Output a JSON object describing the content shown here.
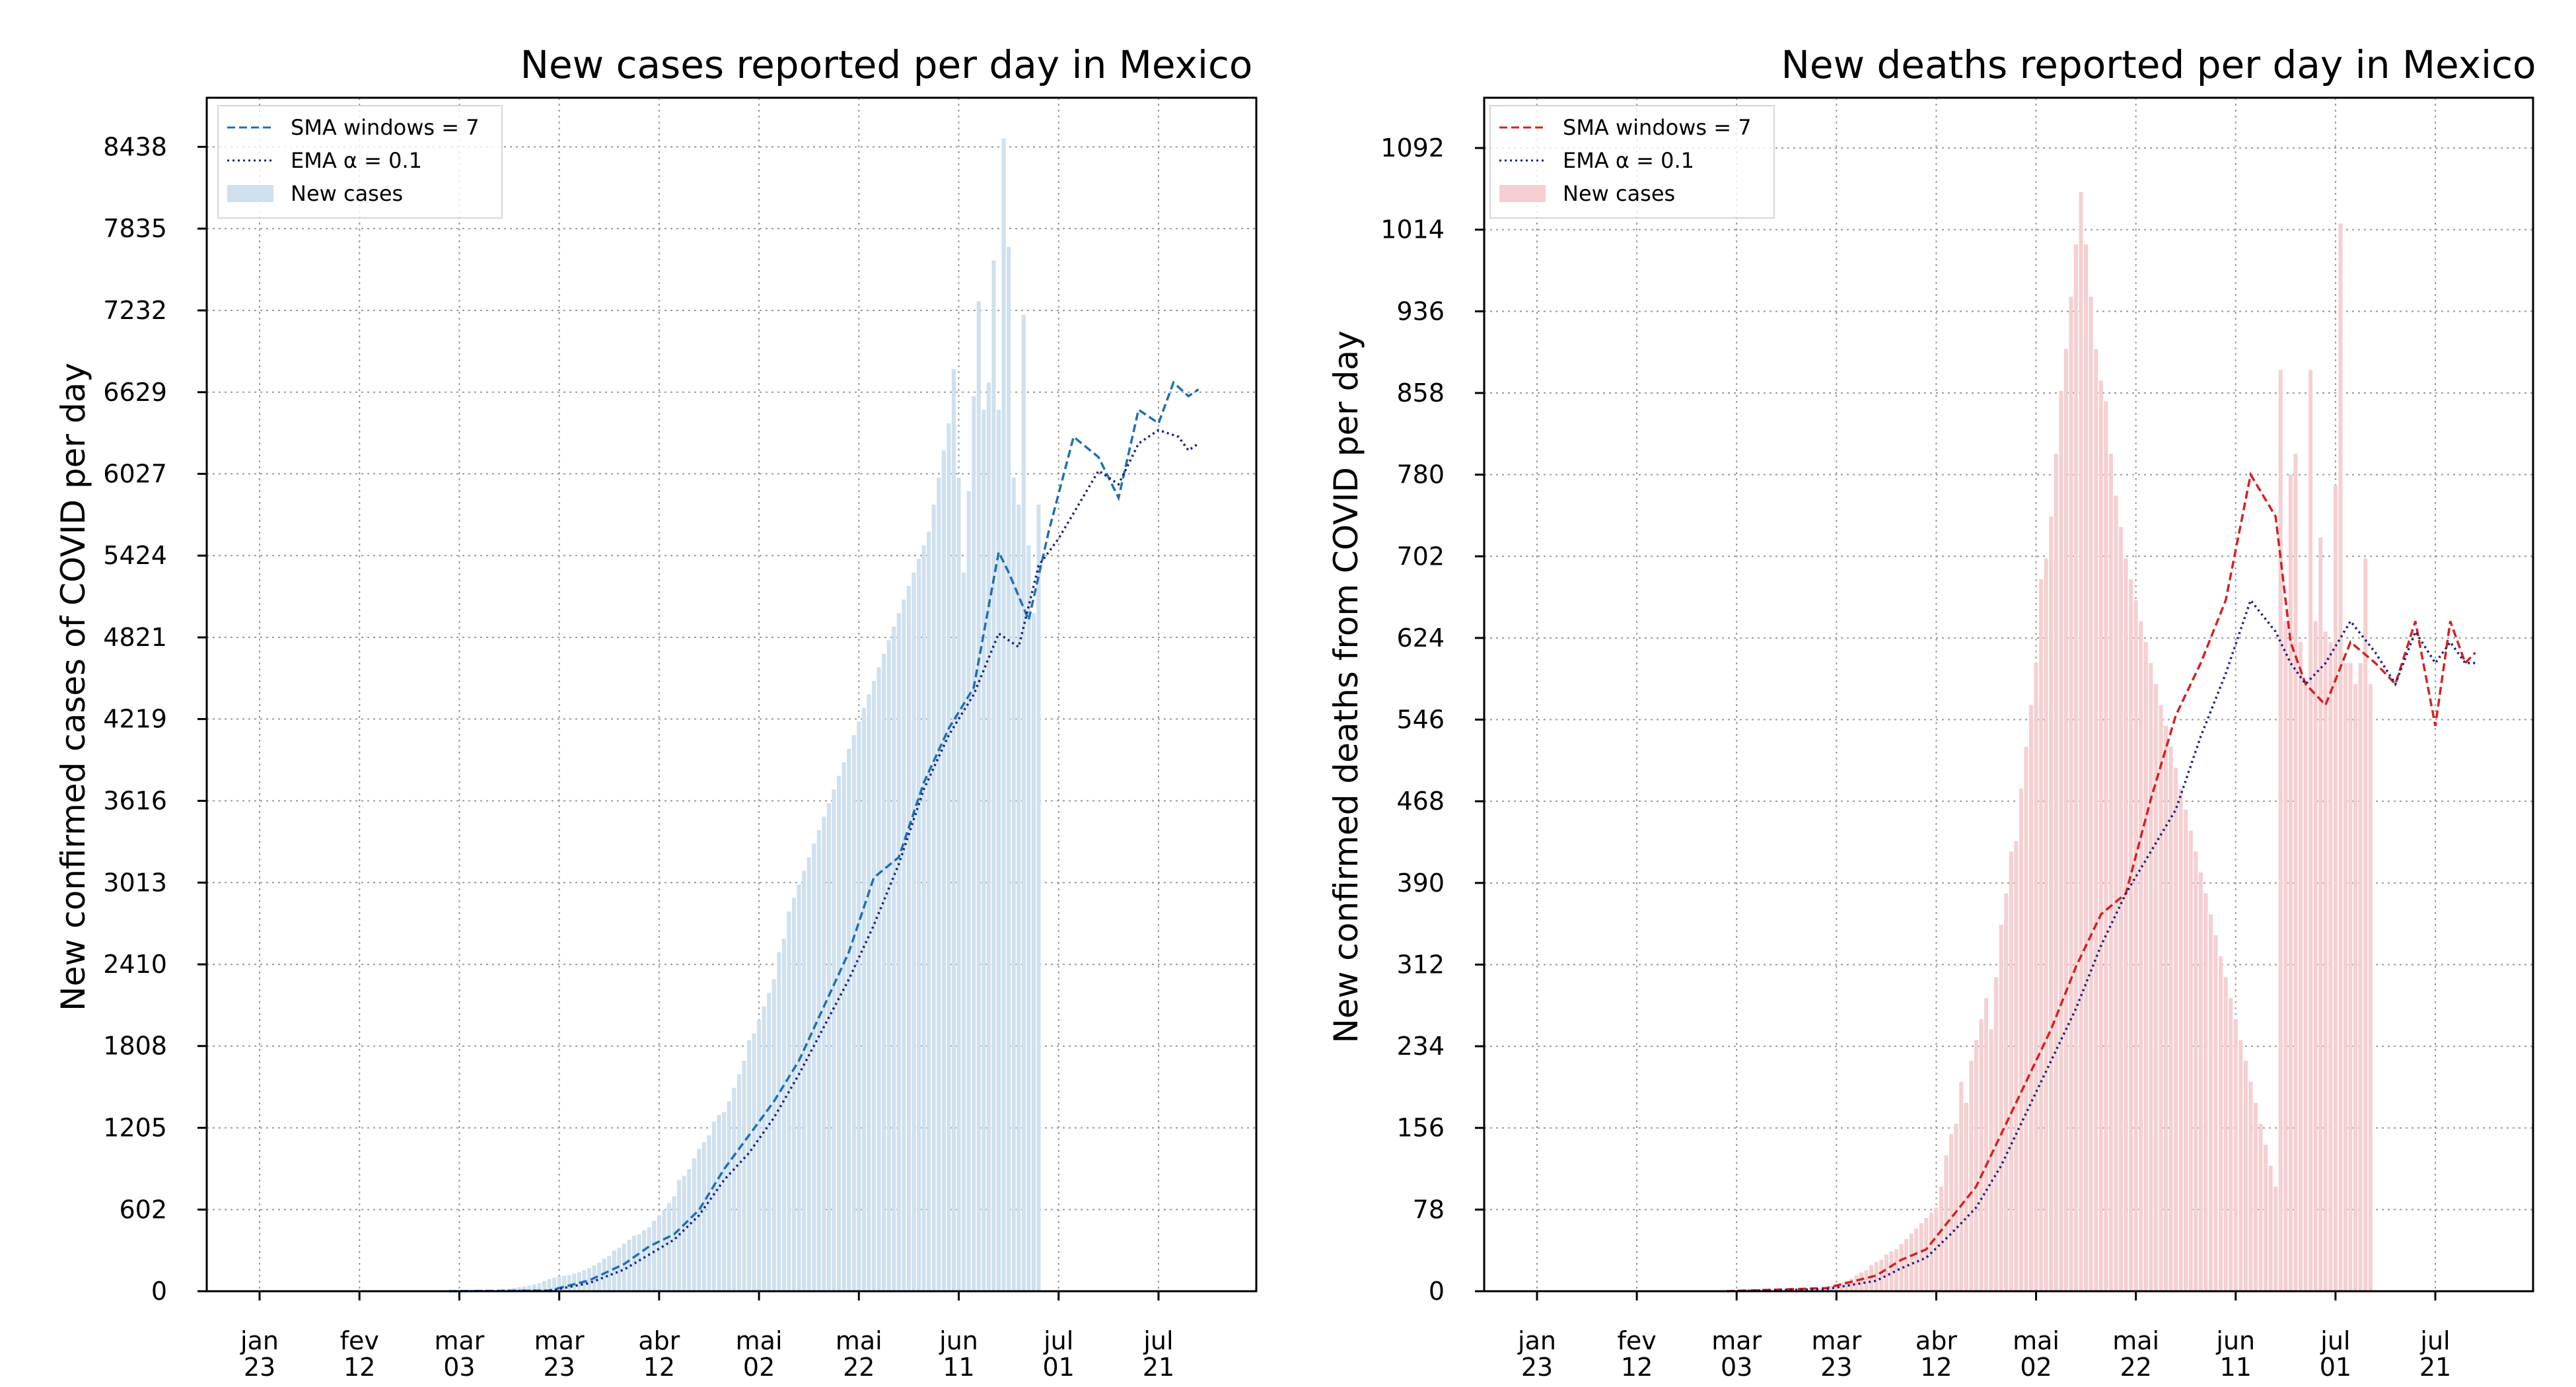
{
  "panels": [
    {
      "title": "New cases reported per day in Mexico",
      "ylabel": "New confirmed cases of COVID per day",
      "legend": [
        "SMA windows = 7",
        "EMA α = 0.1",
        "New cases"
      ],
      "yticks": [
        "0",
        "602",
        "1205",
        "1808",
        "2410",
        "3013",
        "3616",
        "4219",
        "4821",
        "5424",
        "6027",
        "6629",
        "7232",
        "7835",
        "8438"
      ],
      "xticks": [
        [
          "jan",
          "23"
        ],
        [
          "fev",
          "12"
        ],
        [
          "mar",
          "03"
        ],
        [
          "mar",
          "23"
        ],
        [
          "abr",
          "12"
        ],
        [
          "mai",
          "02"
        ],
        [
          "mai",
          "22"
        ],
        [
          "jun",
          "11"
        ],
        [
          "jul",
          "01"
        ],
        [
          "jul",
          "21"
        ]
      ],
      "colors": {
        "bar": "#cfe0ee",
        "sma": "#1f6fb4",
        "ema": "#1a237e"
      }
    },
    {
      "title": "New deaths reported per day in Mexico",
      "ylabel": "New confirmed deaths from COVID per day",
      "legend": [
        "SMA windows = 7",
        "EMA α = 0.1",
        "New cases"
      ],
      "yticks": [
        "0",
        "78",
        "156",
        "234",
        "312",
        "390",
        "468",
        "546",
        "624",
        "702",
        "780",
        "858",
        "936",
        "1014",
        "1092"
      ],
      "xticks": [
        [
          "jan",
          "23"
        ],
        [
          "fev",
          "12"
        ],
        [
          "mar",
          "03"
        ],
        [
          "mar",
          "23"
        ],
        [
          "abr",
          "12"
        ],
        [
          "mai",
          "02"
        ],
        [
          "mai",
          "22"
        ],
        [
          "jun",
          "11"
        ],
        [
          "jul",
          "01"
        ],
        [
          "jul",
          "21"
        ]
      ],
      "colors": {
        "bar": "#f5cfd1",
        "sma": "#d62020",
        "ema": "#1a237e"
      }
    }
  ],
  "chart_data": [
    {
      "type": "bar",
      "title": "New cases reported per day in Mexico",
      "ylabel": "New confirmed cases of COVID per day",
      "xlabel": "",
      "ylim": [
        0,
        8800
      ],
      "x_start": "2020-01-23",
      "x_end": "2020-07-30",
      "grid": true,
      "legend_position": "top-left",
      "series": [
        {
          "name": "New cases",
          "kind": "bar",
          "x_start_date": "2020-03-01",
          "values": [
            0,
            0,
            0,
            5,
            2,
            3,
            5,
            7,
            12,
            5,
            10,
            15,
            20,
            25,
            30,
            35,
            40,
            50,
            60,
            75,
            90,
            100,
            110,
            115,
            120,
            130,
            140,
            155,
            170,
            190,
            210,
            240,
            260,
            300,
            320,
            350,
            380,
            410,
            420,
            450,
            470,
            520,
            560,
            600,
            650,
            700,
            820,
            850,
            900,
            980,
            1050,
            1100,
            1150,
            1250,
            1300,
            1320,
            1400,
            1500,
            1600,
            1700,
            1850,
            1900,
            2000,
            2100,
            2200,
            2300,
            2500,
            2600,
            2800,
            2900,
            3000,
            3100,
            3200,
            3300,
            3400,
            3500,
            3600,
            3700,
            3800,
            3900,
            4000,
            4100,
            4200,
            4300,
            4400,
            4500,
            4600,
            4700,
            4800,
            4900,
            5000,
            5100,
            5200,
            5300,
            5400,
            5500,
            5600,
            5800,
            6000,
            6200,
            6400,
            6800,
            6000,
            5300,
            5900,
            6600,
            7300,
            6500,
            6700,
            7600,
            6500,
            8500,
            7700,
            6000,
            5800,
            7200,
            5500,
            5000,
            5800
          ]
        },
        {
          "name": "SMA windows = 7",
          "kind": "line",
          "x_start_date": "2020-03-01",
          "values": [
            [
              0,
              0
            ],
            [
              20,
              5
            ],
            [
              28,
              80
            ],
            [
              35,
              200
            ],
            [
              40,
              330
            ],
            [
              45,
              420
            ],
            [
              50,
              600
            ],
            [
              55,
              900
            ],
            [
              60,
              1150
            ],
            [
              65,
              1400
            ],
            [
              70,
              1700
            ],
            [
              75,
              2100
            ],
            [
              80,
              2500
            ],
            [
              85,
              3050
            ],
            [
              90,
              3200
            ],
            [
              95,
              3750
            ],
            [
              100,
              4150
            ],
            [
              105,
              4450
            ],
            [
              110,
              5450
            ],
            [
              112,
              5300
            ],
            [
              116,
              4950
            ],
            [
              120,
              5600
            ],
            [
              125,
              6300
            ],
            [
              130,
              6150
            ],
            [
              134,
              5850
            ],
            [
              138,
              6500
            ],
            [
              142,
              6400
            ],
            [
              145,
              6700
            ],
            [
              148,
              6600
            ],
            [
              150,
              6650
            ]
          ]
        },
        {
          "name": "EMA α = 0.1",
          "kind": "line",
          "x_start_date": "2020-03-01",
          "values": [
            [
              0,
              0
            ],
            [
              20,
              3
            ],
            [
              28,
              60
            ],
            [
              35,
              160
            ],
            [
              40,
              270
            ],
            [
              45,
              380
            ],
            [
              50,
              560
            ],
            [
              55,
              820
            ],
            [
              60,
              1020
            ],
            [
              65,
              1280
            ],
            [
              70,
              1600
            ],
            [
              75,
              1950
            ],
            [
              80,
              2300
            ],
            [
              85,
              2700
            ],
            [
              90,
              3150
            ],
            [
              95,
              3700
            ],
            [
              100,
              4100
            ],
            [
              105,
              4400
            ],
            [
              110,
              4850
            ],
            [
              114,
              4750
            ],
            [
              118,
              5350
            ],
            [
              122,
              5550
            ],
            [
              126,
              5800
            ],
            [
              130,
              6050
            ],
            [
              134,
              5950
            ],
            [
              138,
              6250
            ],
            [
              142,
              6350
            ],
            [
              146,
              6300
            ],
            [
              148,
              6200
            ],
            [
              150,
              6250
            ]
          ]
        }
      ]
    },
    {
      "type": "bar",
      "title": "New deaths reported per day in Mexico",
      "ylabel": "New confirmed deaths from COVID per day",
      "xlabel": "",
      "ylim": [
        0,
        1140
      ],
      "x_start": "2020-01-23",
      "x_end": "2020-07-30",
      "grid": true,
      "legend_position": "top-left",
      "series": [
        {
          "name": "New cases",
          "kind": "bar",
          "x_start_date": "2020-03-01",
          "values": [
            0,
            0,
            0,
            0,
            0,
            0,
            0,
            0,
            0,
            0,
            0,
            0,
            0,
            0,
            0,
            0,
            0,
            0,
            1,
            2,
            3,
            5,
            7,
            8,
            10,
            12,
            15,
            18,
            20,
            25,
            28,
            30,
            35,
            38,
            40,
            45,
            50,
            55,
            60,
            65,
            70,
            75,
            80,
            100,
            130,
            150,
            160,
            200,
            180,
            220,
            240,
            260,
            280,
            250,
            300,
            350,
            380,
            420,
            430,
            480,
            520,
            560,
            600,
            680,
            700,
            740,
            800,
            860,
            900,
            950,
            1000,
            1050,
            1000,
            950,
            900,
            870,
            850,
            800,
            760,
            730,
            700,
            680,
            660,
            640,
            620,
            600,
            580,
            560,
            540,
            520,
            500,
            480,
            460,
            440,
            420,
            400,
            380,
            360,
            340,
            320,
            300,
            280,
            260,
            240,
            220,
            200,
            180,
            160,
            140,
            120,
            100,
            880,
            640,
            780,
            800,
            620,
            580,
            880,
            640,
            720,
            630,
            620,
            770,
            1020,
            600,
            600,
            580,
            600,
            700,
            580
          ]
        },
        {
          "name": "SMA windows = 7",
          "kind": "line",
          "x_start_date": "2020-03-01",
          "values": [
            [
              0,
              0
            ],
            [
              20,
              3
            ],
            [
              30,
              15
            ],
            [
              35,
              30
            ],
            [
              40,
              40
            ],
            [
              45,
              70
            ],
            [
              50,
              100
            ],
            [
              55,
              150
            ],
            [
              60,
              200
            ],
            [
              65,
              250
            ],
            [
              70,
              310
            ],
            [
              75,
              360
            ],
            [
              80,
              380
            ],
            [
              85,
              470
            ],
            [
              90,
              550
            ],
            [
              95,
              600
            ],
            [
              100,
              660
            ],
            [
              105,
              780
            ],
            [
              110,
              740
            ],
            [
              113,
              620
            ],
            [
              116,
              580
            ],
            [
              120,
              560
            ],
            [
              125,
              620
            ],
            [
              130,
              600
            ],
            [
              134,
              580
            ],
            [
              138,
              640
            ],
            [
              142,
              540
            ],
            [
              145,
              640
            ],
            [
              148,
              600
            ],
            [
              150,
              610
            ]
          ]
        },
        {
          "name": "EMA α = 0.1",
          "kind": "line",
          "x_start_date": "2020-03-01",
          "values": [
            [
              0,
              0
            ],
            [
              20,
              2
            ],
            [
              30,
              10
            ],
            [
              35,
              22
            ],
            [
              40,
              32
            ],
            [
              45,
              55
            ],
            [
              50,
              80
            ],
            [
              55,
              120
            ],
            [
              60,
              170
            ],
            [
              65,
              220
            ],
            [
              70,
              270
            ],
            [
              75,
              330
            ],
            [
              80,
              380
            ],
            [
              85,
              420
            ],
            [
              90,
              460
            ],
            [
              95,
              530
            ],
            [
              100,
              590
            ],
            [
              105,
              660
            ],
            [
              110,
              630
            ],
            [
              113,
              600
            ],
            [
              116,
              580
            ],
            [
              120,
              600
            ],
            [
              125,
              640
            ],
            [
              130,
              610
            ],
            [
              134,
              580
            ],
            [
              138,
              630
            ],
            [
              142,
              600
            ],
            [
              145,
              620
            ],
            [
              148,
              600
            ],
            [
              150,
              600
            ]
          ]
        }
      ]
    }
  ]
}
